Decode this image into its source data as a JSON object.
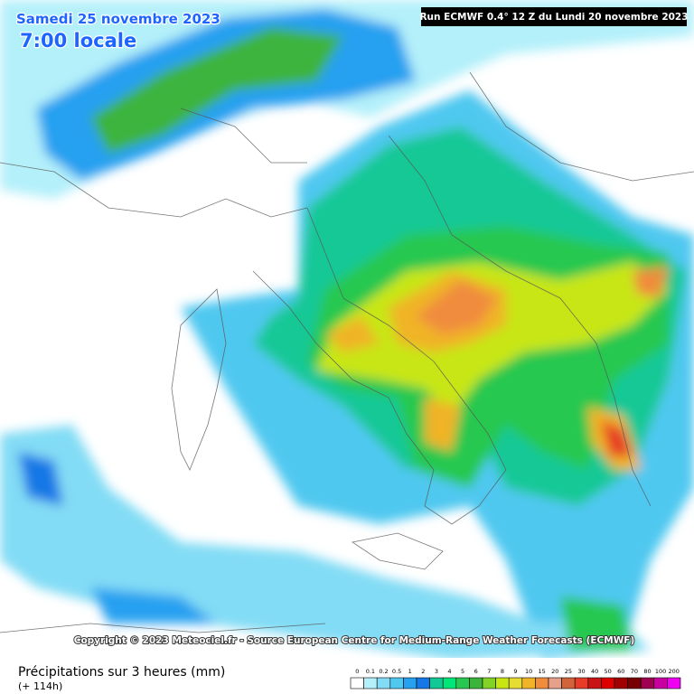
{
  "header": {
    "title": "Samedi 25 novembre 2023",
    "time": "7:00 locale",
    "run": "Run ECMWF 0.4° 12 Z du Lundi 20 novembre 2023"
  },
  "copyright": "Copyright © 2023 Meteociel.fr - Source European Centre for Medium-Range Weather Forecasts (ECMWF)",
  "legend": {
    "title": "Précipitations sur 3 heures (mm)",
    "subtitle": "(+ 114h)",
    "levels": [
      {
        "value": 0,
        "color": "#ffffff"
      },
      {
        "value": 0.1,
        "color": "#b4f0fa"
      },
      {
        "value": 0.2,
        "color": "#82dcf5"
      },
      {
        "value": 0.5,
        "color": "#50c8f0"
      },
      {
        "value": 1,
        "color": "#28a0f0"
      },
      {
        "value": 2,
        "color": "#1478e6"
      },
      {
        "value": 3,
        "color": "#14c896"
      },
      {
        "value": 4,
        "color": "#00e678"
      },
      {
        "value": 5,
        "color": "#28c850"
      },
      {
        "value": 6,
        "color": "#3cb43c"
      },
      {
        "value": 7,
        "color": "#82d228"
      },
      {
        "value": 8,
        "color": "#c8e614"
      },
      {
        "value": 9,
        "color": "#e6dc32"
      },
      {
        "value": 10,
        "color": "#f0b428"
      },
      {
        "value": 15,
        "color": "#f08c3c"
      },
      {
        "value": 20,
        "color": "#e6a08c"
      },
      {
        "value": 25,
        "color": "#d2643c"
      },
      {
        "value": 30,
        "color": "#e63c28"
      },
      {
        "value": 40,
        "color": "#c81414"
      },
      {
        "value": 50,
        "color": "#dc0000"
      },
      {
        "value": 60,
        "color": "#a00000"
      },
      {
        "value": 70,
        "color": "#780000"
      },
      {
        "value": 80,
        "color": "#a00050"
      },
      {
        "value": 100,
        "color": "#c800a0"
      },
      {
        "value": 200,
        "color": "#f000f0"
      }
    ]
  }
}
